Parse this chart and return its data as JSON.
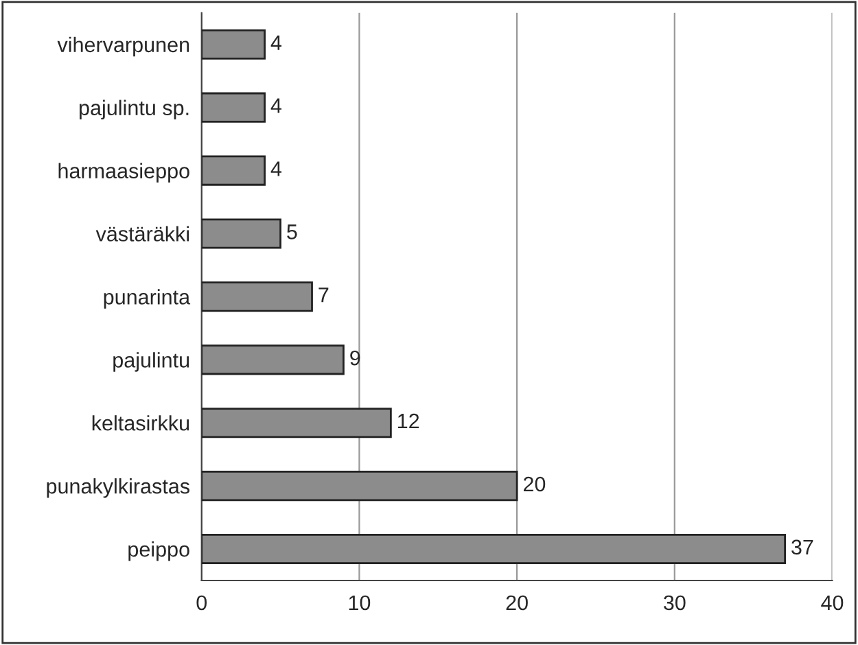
{
  "chart_data": {
    "type": "bar",
    "orientation": "horizontal",
    "categories": [
      "vihervarpunen",
      "pajulintu sp.",
      "harmaasieppo",
      "västäräkki",
      "punarinta",
      "pajulintu",
      "keltasirkku",
      "punakylkirastas",
      "peippo"
    ],
    "values": [
      4,
      4,
      4,
      5,
      7,
      9,
      12,
      20,
      37
    ],
    "color": "#8c8c8c",
    "xlim": [
      0,
      40
    ],
    "xticks": [
      0,
      10,
      20,
      30,
      40
    ],
    "grid": "x",
    "data_labels": true
  }
}
